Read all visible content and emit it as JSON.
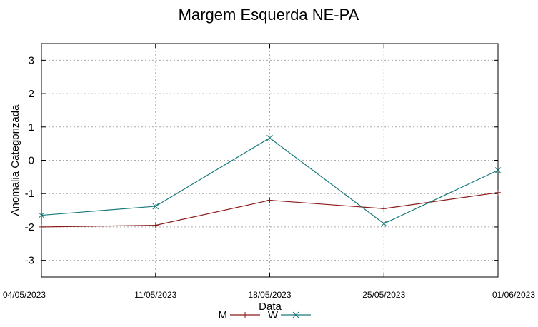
{
  "chart_data": {
    "type": "line",
    "title": "Margem Esquerda NE-PA",
    "xlabel": "Data",
    "ylabel": "Anomalia Categorizada",
    "categories": [
      "04/05/2023",
      "11/05/2023",
      "18/05/2023",
      "25/05/2023",
      "01/06/2023"
    ],
    "ylim": [
      -3.5,
      3.5
    ],
    "yticks": [
      3,
      2,
      1,
      0,
      -1,
      -2,
      -3
    ],
    "grid": true,
    "legend_position": "bottom",
    "series": [
      {
        "name": "M",
        "color": "#8b1a1a",
        "marker": "plus",
        "values": [
          -2.0,
          -1.95,
          -1.2,
          -1.45,
          -0.97
        ]
      },
      {
        "name": "W",
        "color": "#1a7a7a",
        "marker": "cross",
        "values": [
          -1.65,
          -1.38,
          0.67,
          -1.9,
          -0.3
        ]
      }
    ]
  }
}
